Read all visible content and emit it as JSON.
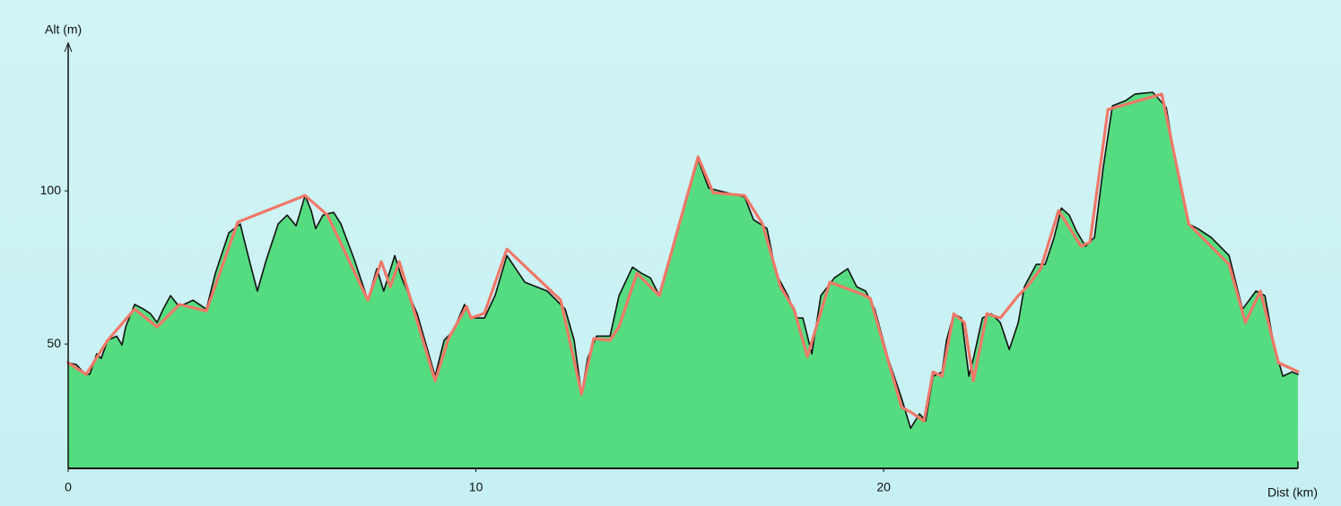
{
  "chart_data": {
    "type": "line",
    "x_label": "Dist (km)",
    "y_label": "Alt (m)",
    "xlim": [
      0,
      30.16
    ],
    "ylim": [
      9.4,
      147.7
    ],
    "xticks": [
      0,
      10,
      20
    ],
    "yticks": [
      50,
      100
    ],
    "series": [
      {
        "color": "#111111",
        "fill": "#55dc80",
        "x": [
          0,
          0.2,
          0.42,
          0.53,
          0.7,
          0.81,
          0.97,
          1.19,
          1.32,
          1.41,
          1.63,
          1.85,
          2.02,
          2.18,
          2.33,
          2.51,
          2.68,
          2.84,
          3.06,
          3.39,
          3.61,
          3.94,
          4.22,
          4.44,
          4.64,
          4.86,
          5.15,
          5.37,
          5.59,
          5.81,
          5.96,
          6.07,
          6.25,
          6.51,
          6.69,
          7.02,
          7.35,
          7.57,
          7.74,
          8.01,
          8.18,
          8.56,
          9.0,
          9.22,
          9.44,
          9.72,
          9.88,
          10.21,
          10.47,
          10.76,
          11.2,
          11.75,
          12.19,
          12.41,
          12.59,
          12.74,
          12.96,
          13.29,
          13.51,
          13.84,
          14.06,
          14.28,
          14.5,
          14.72,
          15.05,
          15.45,
          15.71,
          16.15,
          16.59,
          16.81,
          17.14,
          17.36,
          17.65,
          17.87,
          18.02,
          18.24,
          18.46,
          18.79,
          19.12,
          19.34,
          19.56,
          19.78,
          20.11,
          20.44,
          20.66,
          20.88,
          21.03,
          21.21,
          21.43,
          21.54,
          21.72,
          21.91,
          22.09,
          22.2,
          22.42,
          22.64,
          22.86,
          23.08,
          23.3,
          23.45,
          23.74,
          23.96,
          24.18,
          24.36,
          24.55,
          24.73,
          24.95,
          25.17,
          25.39,
          25.61,
          25.94,
          26.16,
          26.6,
          26.93,
          27.19,
          27.48,
          27.7,
          28.03,
          28.47,
          28.8,
          29.13,
          29.35,
          29.57,
          29.79,
          30.01,
          30.16
        ],
        "values": [
          43.9,
          43.3,
          40.1,
          40.1,
          46.8,
          45.3,
          51.2,
          52.6,
          49.7,
          55.6,
          62.9,
          61.4,
          59.9,
          57.0,
          61.4,
          65.8,
          62.9,
          62.9,
          64.3,
          61.4,
          73.1,
          86.3,
          89.2,
          77.5,
          67.3,
          77.5,
          89.2,
          92.1,
          88.6,
          98.5,
          93.6,
          87.7,
          92.1,
          93.0,
          89.2,
          77.5,
          64.3,
          74.6,
          67.3,
          78.9,
          71.6,
          59.9,
          39.5,
          51.2,
          54.1,
          62.9,
          58.5,
          58.5,
          65.8,
          78.9,
          70.2,
          67.3,
          61.4,
          51.2,
          33.6,
          45.3,
          52.6,
          52.6,
          65.8,
          75.1,
          73.1,
          71.6,
          65.8,
          76.0,
          92.1,
          110.2,
          100.9,
          99.4,
          98.0,
          90.6,
          87.7,
          73.1,
          65.8,
          58.5,
          58.5,
          46.8,
          65.8,
          71.6,
          74.6,
          68.7,
          67.3,
          61.4,
          45.3,
          32.2,
          22.5,
          27.2,
          24.9,
          39.5,
          40.9,
          51.2,
          59.9,
          58.5,
          39.5,
          45.3,
          58.5,
          59.9,
          57.0,
          48.2,
          57.0,
          68.7,
          76.0,
          76.0,
          84.8,
          94.4,
          92.1,
          86.8,
          81.9,
          84.8,
          108.2,
          127.8,
          129.5,
          131.6,
          132.2,
          127.2,
          106.7,
          89.2,
          87.7,
          84.8,
          78.9,
          61.4,
          67.3,
          65.8,
          49.7,
          39.5,
          40.9,
          40.1
        ]
      },
      {
        "color": "#f07868",
        "x": [
          0,
          0.44,
          0.97,
          1.63,
          2.18,
          2.73,
          3.39,
          4.16,
          5.81,
          6.36,
          7.35,
          7.68,
          7.9,
          8.12,
          9.0,
          9.33,
          9.77,
          9.88,
          10.21,
          10.76,
          12.08,
          12.59,
          12.89,
          13.29,
          13.51,
          13.95,
          14.5,
          15.05,
          15.45,
          15.82,
          16.59,
          17.03,
          17.47,
          17.8,
          18.13,
          18.68,
          19.45,
          19.67,
          20.44,
          20.66,
          20.99,
          21.21,
          21.43,
          21.72,
          21.98,
          22.2,
          22.53,
          22.86,
          23.3,
          23.52,
          23.85,
          24.29,
          24.84,
          25.06,
          25.5,
          26.82,
          27.48,
          28.47,
          28.87,
          29.24,
          29.68,
          30.16
        ],
        "values": [
          43.9,
          40.1,
          51.2,
          61.4,
          55.6,
          62.9,
          60.8,
          89.8,
          98.5,
          92.1,
          64.3,
          76.9,
          68.7,
          76.9,
          38.0,
          51.8,
          62.3,
          58.5,
          60.0,
          81.0,
          64.3,
          33.6,
          51.8,
          51.2,
          55.6,
          73.1,
          65.8,
          92.1,
          111.1,
          99.4,
          98.5,
          89.2,
          68.7,
          61.4,
          45.9,
          70.2,
          66.4,
          64.9,
          29.3,
          27.8,
          24.9,
          40.9,
          39.5,
          59.9,
          57.0,
          38.0,
          59.9,
          58.5,
          65.8,
          68.7,
          74.6,
          93.6,
          81.9,
          83.3,
          126.6,
          131.6,
          89.2,
          76.0,
          57.0,
          67.3,
          43.9,
          41.0
        ]
      }
    ]
  }
}
